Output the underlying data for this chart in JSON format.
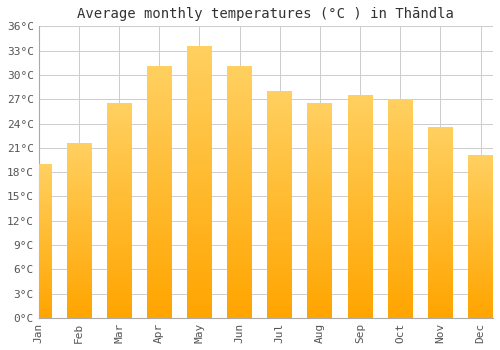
{
  "title": "Average monthly temperatures (°C ) in Thāndla",
  "months": [
    "Jan",
    "Feb",
    "Mar",
    "Apr",
    "May",
    "Jun",
    "Jul",
    "Aug",
    "Sep",
    "Oct",
    "Nov",
    "Dec"
  ],
  "values": [
    19.0,
    21.5,
    26.5,
    31.0,
    33.5,
    31.0,
    28.0,
    26.5,
    27.5,
    27.0,
    23.5,
    20.0
  ],
  "bar_color": "#FFA500",
  "bar_color_light": "#FFD060",
  "background_color": "#FFFFFF",
  "grid_color": "#CCCCCC",
  "ytick_step": 3,
  "ymax": 36,
  "ymin": 0,
  "title_fontsize": 10,
  "tick_fontsize": 8,
  "tick_label_color": "#555555",
  "title_color": "#333333"
}
